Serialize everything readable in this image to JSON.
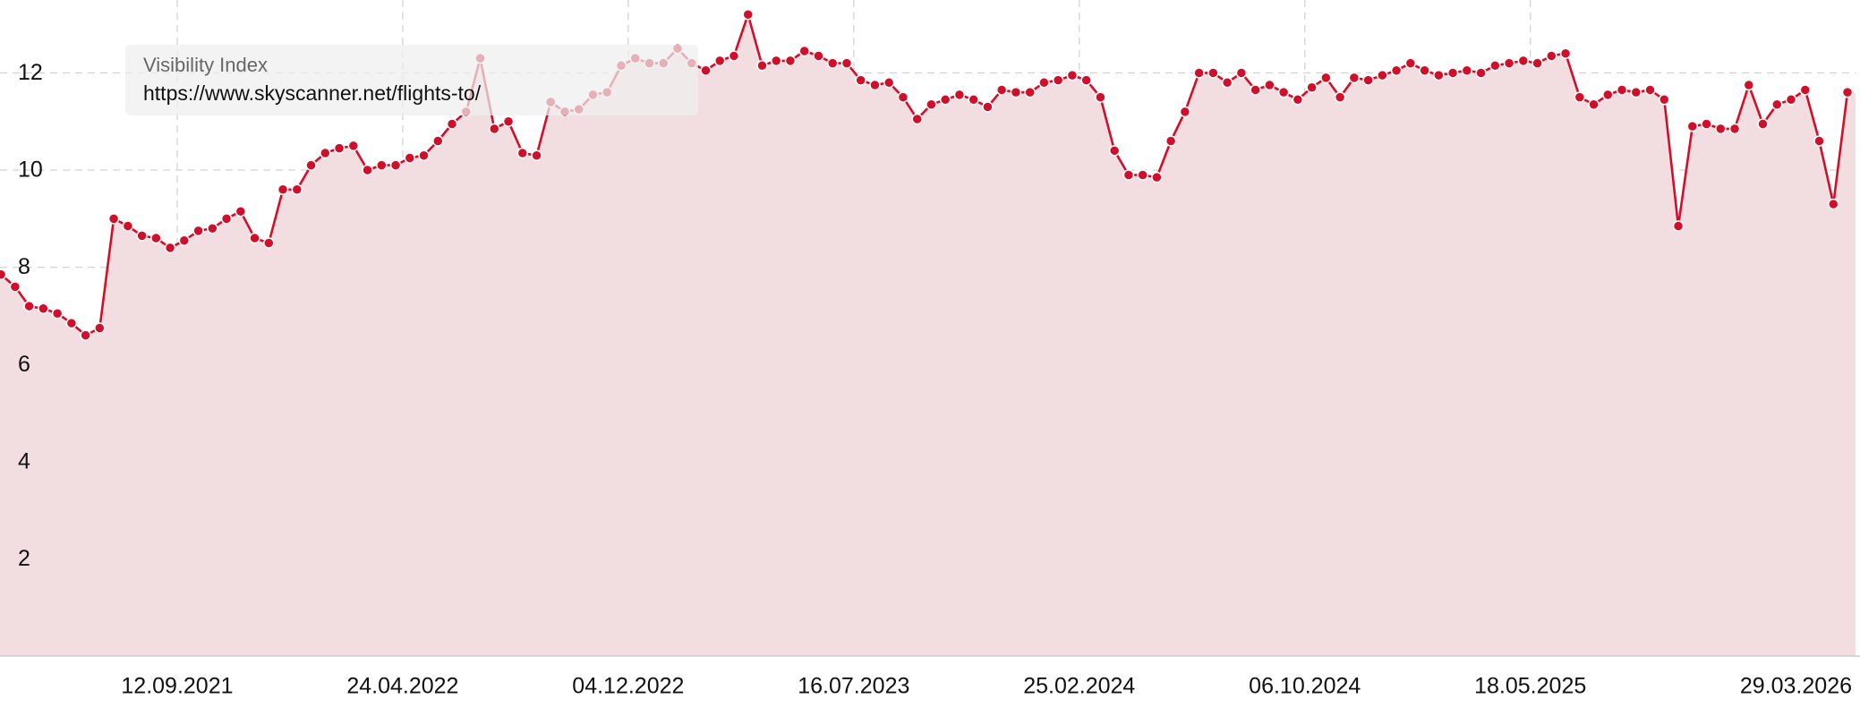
{
  "chart_data": {
    "type": "line",
    "area": true,
    "tooltip_title": "Visibility Index",
    "x": [
      "2021-03-21",
      "2021-04-04",
      "2021-04-18",
      "2021-05-02",
      "2021-05-16",
      "2021-05-30",
      "2021-06-13",
      "2021-06-27",
      "2021-07-11",
      "2021-07-25",
      "2021-08-08",
      "2021-08-22",
      "2021-09-05",
      "2021-09-19",
      "2021-10-03",
      "2021-10-17",
      "2021-10-31",
      "2021-11-14",
      "2021-11-28",
      "2021-12-12",
      "2021-12-26",
      "2022-01-09",
      "2022-01-23",
      "2022-02-06",
      "2022-02-20",
      "2022-03-06",
      "2022-03-20",
      "2022-04-03",
      "2022-04-17",
      "2022-05-01",
      "2022-05-15",
      "2022-05-29",
      "2022-06-12",
      "2022-06-26",
      "2022-07-10",
      "2022-07-24",
      "2022-08-07",
      "2022-08-21",
      "2022-09-04",
      "2022-09-18",
      "2022-10-02",
      "2022-10-16",
      "2022-10-30",
      "2022-11-13",
      "2022-11-27",
      "2022-12-11",
      "2022-12-25",
      "2023-01-08",
      "2023-01-22",
      "2023-02-05",
      "2023-02-19",
      "2023-03-05",
      "2023-03-19",
      "2023-04-02",
      "2023-04-16",
      "2023-04-30",
      "2023-05-14",
      "2023-05-28",
      "2023-06-11",
      "2023-06-25",
      "2023-07-09",
      "2023-07-23",
      "2023-08-06",
      "2023-08-20",
      "2023-09-03",
      "2023-09-17",
      "2023-10-01",
      "2023-10-15",
      "2023-10-29",
      "2023-11-12",
      "2023-11-26",
      "2023-12-10",
      "2023-12-24",
      "2024-01-07",
      "2024-01-21",
      "2024-02-04",
      "2024-02-18",
      "2024-03-03",
      "2024-03-17",
      "2024-03-31",
      "2024-04-14",
      "2024-04-28",
      "2024-05-12",
      "2024-05-26",
      "2024-06-09",
      "2024-06-23",
      "2024-07-07",
      "2024-07-21",
      "2024-08-04",
      "2024-08-18",
      "2024-09-01",
      "2024-09-15",
      "2024-09-29",
      "2024-10-13",
      "2024-10-27",
      "2024-11-10",
      "2024-11-24",
      "2024-12-08",
      "2024-12-22",
      "2025-01-05",
      "2025-01-19",
      "2025-02-02",
      "2025-02-16",
      "2025-03-02",
      "2025-03-16",
      "2025-03-30",
      "2025-04-13",
      "2025-04-27",
      "2025-05-11",
      "2025-05-25",
      "2025-06-08",
      "2025-06-22",
      "2025-07-06",
      "2025-07-20",
      "2025-08-03",
      "2025-08-17",
      "2025-08-31",
      "2025-09-14",
      "2025-09-28",
      "2025-10-12",
      "2025-10-26",
      "2025-11-09",
      "2025-11-23",
      "2025-12-07",
      "2025-12-21",
      "2026-01-04",
      "2026-01-18",
      "2026-02-01",
      "2026-02-15",
      "2026-03-01",
      "2026-03-15",
      "2026-03-29"
    ],
    "series": [
      {
        "name": "https://www.skyscanner.net/flights-to/",
        "color": "#d0102a",
        "fill": "#f2dde0",
        "values": [
          7.85,
          7.6,
          7.2,
          7.15,
          7.05,
          6.85,
          6.6,
          6.75,
          9.0,
          8.85,
          8.65,
          8.6,
          8.4,
          8.55,
          8.75,
          8.8,
          9.0,
          9.15,
          8.6,
          8.5,
          9.6,
          9.6,
          10.1,
          10.35,
          10.45,
          10.5,
          10.0,
          10.1,
          10.1,
          10.25,
          10.3,
          10.6,
          10.95,
          11.2,
          12.3,
          10.85,
          11.0,
          10.35,
          10.3,
          11.4,
          11.2,
          11.25,
          11.55,
          11.6,
          12.15,
          12.3,
          12.2,
          12.2,
          12.5,
          12.2,
          12.05,
          12.25,
          12.35,
          13.2,
          12.15,
          12.25,
          12.25,
          12.45,
          12.35,
          12.2,
          12.2,
          11.85,
          11.75,
          11.8,
          11.5,
          11.05,
          11.35,
          11.45,
          11.55,
          11.45,
          11.3,
          11.65,
          11.6,
          11.6,
          11.8,
          11.85,
          11.95,
          11.85,
          11.5,
          10.4,
          9.9,
          9.9,
          9.85,
          10.6,
          11.2,
          12.0,
          12.0,
          11.8,
          12.0,
          11.65,
          11.75,
          11.6,
          11.45,
          11.7,
          11.9,
          11.5,
          11.9,
          11.85,
          11.95,
          12.05,
          12.2,
          12.05,
          11.95,
          12.0,
          12.05,
          12.0,
          12.15,
          12.2,
          12.25,
          12.2,
          12.35,
          12.4,
          11.5,
          11.35,
          11.55,
          11.65,
          11.6,
          11.65,
          11.45,
          8.85,
          10.9,
          10.95,
          10.85,
          10.85,
          11.75,
          10.95,
          11.35,
          11.45,
          11.65,
          10.6,
          9.3,
          11.6
        ]
      }
    ],
    "xlim": [
      "2021-03-20",
      "2026-04-06"
    ],
    "xticks": [
      {
        "value": "2021-09-12",
        "label": "12.09.2021"
      },
      {
        "value": "2022-04-24",
        "label": "24.04.2022"
      },
      {
        "value": "2022-12-04",
        "label": "04.12.2022"
      },
      {
        "value": "2023-07-16",
        "label": "16.07.2023"
      },
      {
        "value": "2024-02-25",
        "label": "25.02.2024"
      },
      {
        "value": "2024-10-06",
        "label": "06.10.2024"
      },
      {
        "value": "2025-05-18",
        "label": "18.05.2025"
      },
      {
        "value": "2026-03-29",
        "label": "29.03.2026"
      }
    ],
    "ylim": [
      0,
      13.5
    ],
    "yticks": [
      2,
      4,
      6,
      8,
      10,
      12
    ],
    "grid": true
  }
}
